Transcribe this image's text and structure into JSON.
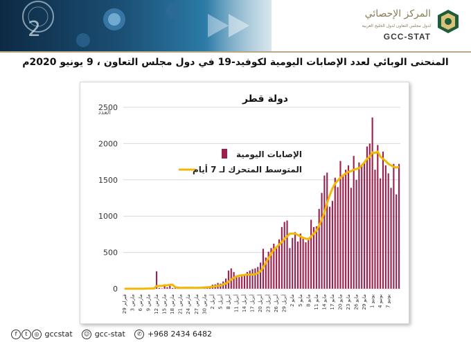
{
  "header": {
    "logo_arabic": "المركز الإحصائي",
    "logo_subtitle": "لدول مجلس التعاون لدول الخليج العربية",
    "logo_english": "GCC-STAT"
  },
  "title": "المنحنى الوبائي لعدد الإصابات اليومية لكوفيد-19  في  دول مجلس التعاون ، 9 يونيو 2020م",
  "footer": {
    "social_handle": "gccstat",
    "snapchat": "gcc-stat",
    "whatsapp": "+968 2434 6482"
  },
  "colors": {
    "bar": "#9c1f4e",
    "line": "#f2b705",
    "grid": "#d9d9d9"
  },
  "chart_data": {
    "type": "bar",
    "title": "دولة قطر",
    "ylabel": "العدد",
    "ylim": [
      0,
      2500
    ],
    "yticks": [
      0,
      500,
      1000,
      1500,
      2000,
      2500
    ],
    "grid": true,
    "legend_position": "top-right",
    "tick_labels": [
      "29 فبراير",
      "3 مارس",
      "6 مارس",
      "9 مارس",
      "12 مارس",
      "15 مارس",
      "18 مارس",
      "21 مارس",
      "24 مارس",
      "27 مارس",
      "30 مارس",
      "2 أبريل",
      "5 أبريل",
      "8 أبريل",
      "11 أبريل",
      "14 أبريل",
      "17 أبريل",
      "20 أبريل",
      "23 أبريل",
      "26 أبريل",
      "29 أبريل",
      "2 مايو",
      "5 مايو",
      "8 مايو",
      "11 مايو",
      "14 مايو",
      "17 مايو",
      "20 مايو",
      "23 مايو",
      "26 مايو",
      "29 مايو",
      "1 يونيو",
      "4 يونيو",
      "7 يونيو"
    ],
    "series": [
      {
        "name": "الإصابات اليومية",
        "type": "bar",
        "values": [
          0,
          0,
          0,
          0,
          0,
          0,
          0,
          1,
          2,
          3,
          4,
          5,
          240,
          10,
          5,
          60,
          20,
          40,
          10,
          20,
          15,
          10,
          8,
          5,
          12,
          15,
          10,
          10,
          20,
          15,
          25,
          30,
          30,
          55,
          60,
          80,
          70,
          100,
          140,
          250,
          280,
          230,
          180,
          160,
          170,
          200,
          230,
          250,
          270,
          280,
          300,
          360,
          550,
          430,
          510,
          560,
          620,
          580,
          680,
          850,
          920,
          940,
          560,
          700,
          780,
          650,
          760,
          690,
          640,
          700,
          950,
          850,
          860,
          1100,
          1320,
          1560,
          1600,
          1130,
          1210,
          1530,
          1400,
          1760,
          1550,
          1640,
          1700,
          1390,
          1830,
          1500,
          1740,
          1700,
          1750,
          1960,
          2000,
          2360,
          1640,
          1980,
          1520,
          1890,
          1700,
          1590,
          1390,
          1720,
          1300,
          1720
        ]
      },
      {
        "name": "المتوسط المتحرك لـ 7 أيام",
        "type": "line",
        "values": [
          0,
          0,
          0,
          0,
          0,
          0,
          0,
          0,
          1,
          2,
          2,
          3,
          36,
          38,
          38,
          47,
          48,
          54,
          55,
          20,
          15,
          12,
          12,
          13,
          13,
          13,
          11,
          11,
          13,
          14,
          17,
          20,
          23,
          28,
          33,
          40,
          45,
          60,
          72,
          95,
          125,
          150,
          170,
          180,
          185,
          190,
          195,
          195,
          195,
          200,
          215,
          240,
          290,
          360,
          420,
          480,
          540,
          570,
          610,
          640,
          690,
          720,
          760,
          760,
          760,
          740,
          720,
          700,
          690,
          680,
          720,
          760,
          800,
          870,
          950,
          1050,
          1180,
          1290,
          1380,
          1450,
          1490,
          1530,
          1560,
          1590,
          1610,
          1620,
          1640,
          1650,
          1660,
          1700,
          1740,
          1790,
          1820,
          1880,
          1870,
          1890,
          1820,
          1790,
          1760,
          1720,
          1700,
          1680,
          1670,
          1680
        ]
      }
    ]
  }
}
